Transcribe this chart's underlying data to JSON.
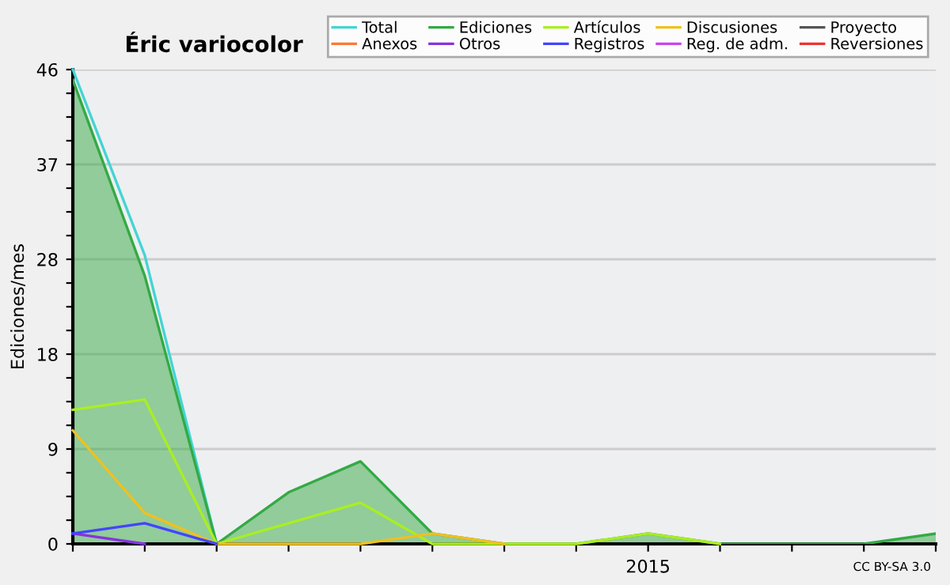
{
  "chart_data": {
    "type": "line",
    "title": "Éric variocolor",
    "ylabel": "Ediciones/mes",
    "categories": [
      null,
      null,
      null,
      null,
      null,
      null,
      null,
      null,
      "2015",
      null,
      null,
      null,
      null
    ],
    "series": [
      {
        "name": "Total",
        "color": "#44d4d4",
        "values": [
          46,
          28,
          0,
          null,
          null,
          null,
          null,
          null,
          null,
          null,
          null,
          null,
          null
        ]
      },
      {
        "name": "Ediciones",
        "type": "area",
        "color": "#33aa44",
        "values": [
          45,
          26,
          0,
          5,
          8,
          1,
          0,
          0,
          1,
          0,
          0,
          0,
          1
        ]
      },
      {
        "name": "Artículos",
        "color": "#aaee22",
        "values": [
          13,
          14,
          0,
          2,
          4,
          0,
          0,
          0,
          1,
          0,
          null,
          null,
          null
        ]
      },
      {
        "name": "Discusiones",
        "color": "#f0c020",
        "values": [
          11,
          3,
          0,
          0,
          0,
          1,
          0,
          null,
          null,
          null,
          null,
          null,
          null
        ]
      },
      {
        "name": "Proyecto",
        "color": "#555555",
        "values": [
          null,
          null,
          null,
          null,
          null,
          null,
          null,
          null,
          null,
          null,
          null,
          null,
          null
        ]
      },
      {
        "name": "Anexos",
        "color": "#ff7733",
        "values": [
          null,
          null,
          null,
          null,
          null,
          null,
          null,
          null,
          null,
          null,
          null,
          null,
          null
        ]
      },
      {
        "name": "Otros",
        "color": "#8833dd",
        "values": [
          1,
          0,
          null,
          null,
          null,
          null,
          null,
          null,
          null,
          null,
          null,
          null,
          null
        ]
      },
      {
        "name": "Registros",
        "color": "#4444ff",
        "values": [
          1,
          2,
          0,
          null,
          null,
          null,
          null,
          null,
          null,
          null,
          null,
          null,
          null
        ]
      },
      {
        "name": "Reg. de adm.",
        "color": "#cc44ee",
        "values": [
          null,
          null,
          null,
          null,
          null,
          null,
          null,
          null,
          null,
          null,
          null,
          null,
          null
        ]
      },
      {
        "name": "Reversiones",
        "color": "#ee3333",
        "values": [
          null,
          null,
          null,
          null,
          null,
          null,
          null,
          null,
          null,
          null,
          null,
          null,
          null
        ]
      }
    ],
    "ylim": [
      0,
      46
    ],
    "yticks": [
      0,
      {
        "value": 2.3,
        "label": null
      },
      {
        "value": 4.6,
        "label": null
      },
      {
        "value": 6.9,
        "label": null
      },
      {
        "value": 9.2,
        "label": "9"
      },
      {
        "value": 11.5,
        "label": null
      },
      {
        "value": 13.8,
        "label": null
      },
      {
        "value": 16.1,
        "label": null
      },
      {
        "value": 18.4,
        "label": "18"
      },
      {
        "value": 20.7,
        "label": null
      },
      {
        "value": 23,
        "label": null
      },
      {
        "value": 25.3,
        "label": null
      },
      {
        "value": 27.6,
        "label": "28"
      },
      {
        "value": 29.9,
        "label": null
      },
      {
        "value": 32.2,
        "label": null
      },
      {
        "value": 34.5,
        "label": null
      },
      {
        "value": 36.8,
        "label": "37"
      },
      {
        "value": 39.1,
        "label": null
      },
      {
        "value": 41.4,
        "label": null
      },
      {
        "value": 43.7,
        "label": null
      },
      46
    ],
    "grid": "y",
    "legend": "top right",
    "marker": "none",
    "line_style": "solid",
    "annotations": [
      "CC BY-SA 3.0"
    ]
  }
}
